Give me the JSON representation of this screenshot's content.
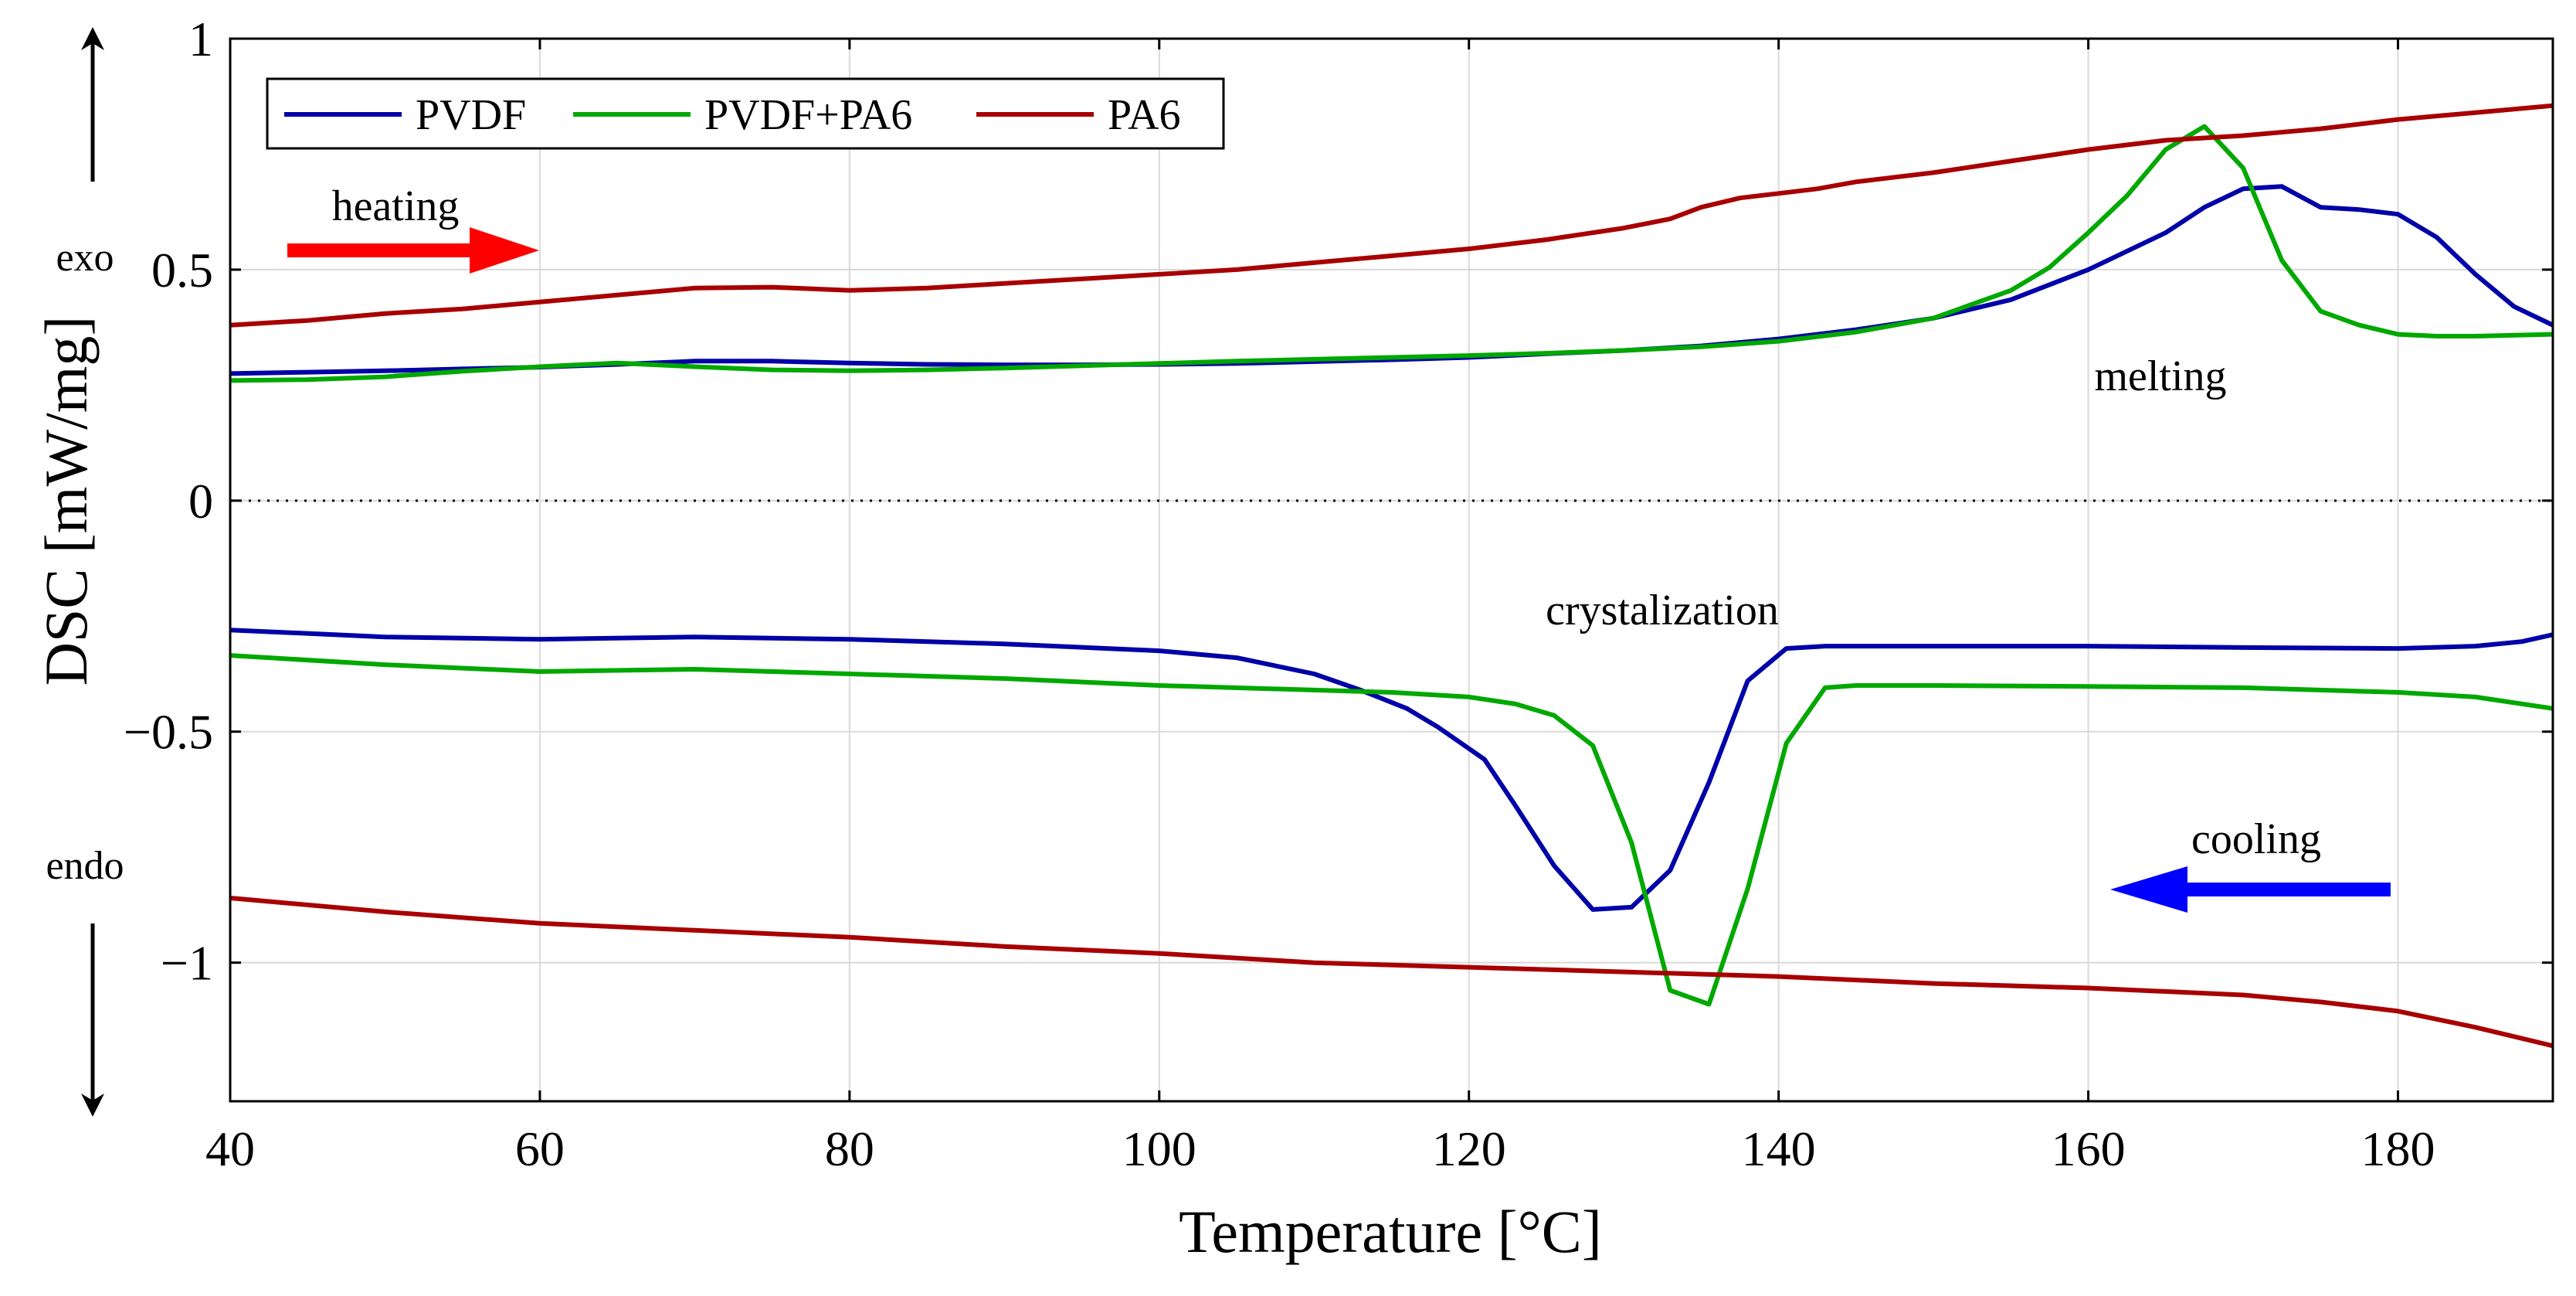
{
  "chart_data": {
    "type": "line",
    "xlabel": "Temperature [°C]",
    "ylabel": "DSC [mW/mg]",
    "xlim": [
      40,
      190
    ],
    "ylim": [
      -1.3,
      1
    ],
    "xticks": [
      40,
      60,
      80,
      100,
      120,
      140,
      160,
      180
    ],
    "yticks": [
      1,
      0.5,
      0,
      -0.5,
      -1
    ],
    "ytick_labels": [
      "1",
      "0.5",
      "0",
      "−0.5",
      "−1"
    ],
    "grid": true,
    "zero_line": "dotted",
    "legend_position": "top-left",
    "series": [
      {
        "name": "PVDF",
        "color": "#0000A8",
        "segment": "heating",
        "x": [
          40,
          45,
          50,
          55,
          60,
          65,
          70,
          75,
          80,
          85,
          90,
          95,
          100,
          105,
          110,
          115,
          120,
          125,
          130,
          135,
          140,
          145,
          150,
          155,
          160,
          165,
          167.5,
          170,
          172.5,
          175,
          177.5,
          180,
          182.5,
          185,
          187.5,
          190
        ],
        "y": [
          0.275,
          0.278,
          0.281,
          0.285,
          0.289,
          0.295,
          0.302,
          0.302,
          0.298,
          0.295,
          0.294,
          0.294,
          0.295,
          0.297,
          0.301,
          0.305,
          0.31,
          0.318,
          0.325,
          0.335,
          0.35,
          0.37,
          0.395,
          0.435,
          0.5,
          0.58,
          0.635,
          0.675,
          0.68,
          0.635,
          0.63,
          0.62,
          0.57,
          0.49,
          0.42,
          0.38
        ]
      },
      {
        "name": "PVDF",
        "color": "#0000A8",
        "segment": "cooling",
        "x": [
          40,
          50,
          60,
          70,
          80,
          90,
          100,
          105,
          110,
          113,
          116,
          118,
          121,
          123,
          125.5,
          128,
          130.5,
          133,
          135.5,
          138,
          140.5,
          143,
          150,
          160,
          170,
          180,
          185,
          188,
          190
        ],
        "y": [
          -0.28,
          -0.295,
          -0.3,
          -0.295,
          -0.3,
          -0.31,
          -0.325,
          -0.34,
          -0.375,
          -0.41,
          -0.45,
          -0.49,
          -0.56,
          -0.66,
          -0.79,
          -0.885,
          -0.88,
          -0.8,
          -0.61,
          -0.39,
          -0.32,
          -0.315,
          -0.315,
          -0.315,
          -0.318,
          -0.32,
          -0.315,
          -0.305,
          -0.29
        ]
      },
      {
        "name": "PVDF+PA6",
        "color": "#00A800",
        "segment": "heating",
        "x": [
          40,
          45,
          50,
          55,
          60,
          65,
          70,
          75,
          80,
          85,
          90,
          95,
          100,
          105,
          110,
          115,
          120,
          125,
          130,
          135,
          140,
          145,
          150,
          155,
          157.5,
          160,
          162.5,
          165,
          167.5,
          170,
          172.5,
          175,
          177.5,
          180,
          182.5,
          185,
          190
        ],
        "y": [
          0.26,
          0.262,
          0.268,
          0.28,
          0.29,
          0.298,
          0.29,
          0.283,
          0.281,
          0.283,
          0.287,
          0.292,
          0.297,
          0.302,
          0.306,
          0.31,
          0.314,
          0.319,
          0.325,
          0.333,
          0.345,
          0.365,
          0.395,
          0.455,
          0.505,
          0.58,
          0.66,
          0.76,
          0.81,
          0.72,
          0.52,
          0.41,
          0.38,
          0.36,
          0.356,
          0.356,
          0.36
        ]
      },
      {
        "name": "PVDF+PA6",
        "color": "#00A800",
        "segment": "cooling",
        "x": [
          40,
          50,
          60,
          70,
          80,
          90,
          100,
          110,
          115,
          120,
          123,
          125.5,
          128,
          130.5,
          133,
          135.5,
          138,
          140.5,
          143,
          145,
          150,
          160,
          170,
          180,
          185,
          190
        ],
        "y": [
          -0.335,
          -0.355,
          -0.37,
          -0.365,
          -0.375,
          -0.385,
          -0.4,
          -0.41,
          -0.415,
          -0.425,
          -0.44,
          -0.465,
          -0.53,
          -0.74,
          -1.06,
          -1.09,
          -0.84,
          -0.525,
          -0.405,
          -0.4,
          -0.4,
          -0.402,
          -0.405,
          -0.415,
          -0.425,
          -0.45
        ]
      },
      {
        "name": "PA6",
        "color": "#A80000",
        "segment": "heating",
        "x": [
          40,
          45,
          50,
          55,
          60,
          65,
          70,
          75,
          80,
          85,
          90,
          95,
          100,
          105,
          110,
          115,
          120,
          125,
          130,
          133,
          135,
          137.5,
          140,
          142.5,
          145,
          147.5,
          150,
          155,
          160,
          165,
          170,
          175,
          180,
          185,
          190
        ],
        "y": [
          0.38,
          0.39,
          0.405,
          0.415,
          0.43,
          0.445,
          0.46,
          0.462,
          0.455,
          0.46,
          0.47,
          0.48,
          0.49,
          0.5,
          0.515,
          0.53,
          0.545,
          0.565,
          0.59,
          0.61,
          0.635,
          0.655,
          0.665,
          0.675,
          0.69,
          0.7,
          0.71,
          0.735,
          0.76,
          0.78,
          0.79,
          0.805,
          0.825,
          0.84,
          0.855
        ]
      },
      {
        "name": "PA6",
        "color": "#A80000",
        "segment": "cooling",
        "x": [
          40,
          50,
          60,
          70,
          80,
          90,
          100,
          110,
          120,
          130,
          140,
          150,
          160,
          170,
          175,
          180,
          185,
          190
        ],
        "y": [
          -0.86,
          -0.89,
          -0.915,
          -0.93,
          -0.945,
          -0.965,
          -0.98,
          -1.0,
          -1.01,
          -1.02,
          -1.03,
          -1.045,
          -1.055,
          -1.07,
          -1.085,
          -1.105,
          -1.14,
          -1.18
        ]
      }
    ],
    "legend": [
      "PVDF",
      "PVDF+PA6",
      "PA6"
    ],
    "annotations": {
      "heating": "heating",
      "cooling": "cooling",
      "melting": "melting",
      "crystalization": "crystalization",
      "exo": "exo",
      "endo": "endo"
    },
    "arrow_colors": {
      "heating": "#FF0000",
      "cooling": "#0000FF"
    }
  }
}
